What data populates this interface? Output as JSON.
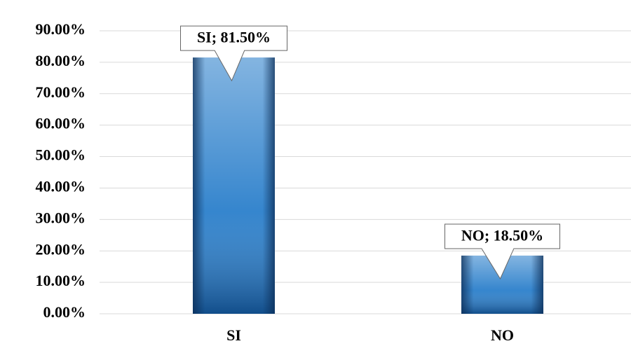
{
  "chart_data": {
    "type": "bar",
    "categories": [
      "SI",
      "NO"
    ],
    "values": [
      81.5,
      18.5
    ],
    "value_labels": [
      "SI; 81.50%",
      "NO; 18.50%"
    ],
    "color": "#1f78c8",
    "ylim": [
      0,
      90
    ],
    "yticks": [
      {
        "value": 0,
        "label": "0.00%"
      },
      {
        "value": 10,
        "label": "10.00%"
      },
      {
        "value": 20,
        "label": "20.00%"
      },
      {
        "value": 30,
        "label": "30.00%"
      },
      {
        "value": 40,
        "label": "40.00%"
      },
      {
        "value": 50,
        "label": "50.00%"
      },
      {
        "value": 60,
        "label": "60.00%"
      },
      {
        "value": 70,
        "label": "70.00%"
      },
      {
        "value": 80,
        "label": "80.00%"
      },
      {
        "value": 90,
        "label": "90.00%"
      }
    ],
    "grid": true
  }
}
